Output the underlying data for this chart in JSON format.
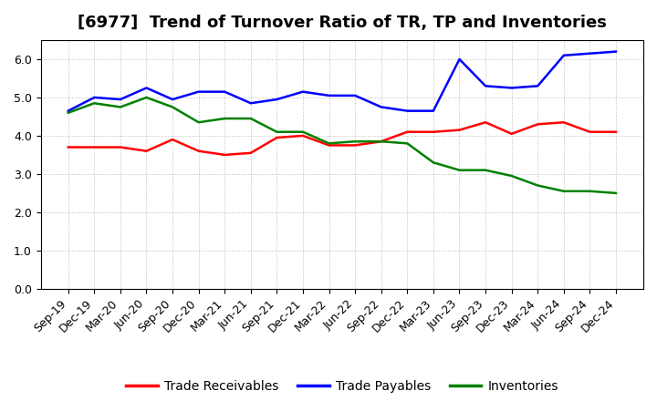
{
  "title": "[6977]  Trend of Turnover Ratio of TR, TP and Inventories",
  "x_labels": [
    "Sep-19",
    "Dec-19",
    "Mar-20",
    "Jun-20",
    "Sep-20",
    "Dec-20",
    "Mar-21",
    "Jun-21",
    "Sep-21",
    "Dec-21",
    "Mar-22",
    "Jun-22",
    "Sep-22",
    "Dec-22",
    "Mar-23",
    "Jun-23",
    "Sep-23",
    "Dec-23",
    "Mar-24",
    "Jun-24",
    "Sep-24",
    "Dec-24"
  ],
  "trade_receivables": [
    3.7,
    3.7,
    3.7,
    3.6,
    3.9,
    3.6,
    3.5,
    3.55,
    3.95,
    4.0,
    3.75,
    3.75,
    3.85,
    4.1,
    4.1,
    4.15,
    4.35,
    4.05,
    4.3,
    4.35,
    4.1,
    4.1
  ],
  "trade_payables": [
    4.65,
    5.0,
    4.95,
    5.25,
    4.95,
    5.15,
    5.15,
    4.85,
    4.95,
    5.15,
    5.05,
    5.05,
    4.75,
    4.65,
    4.65,
    6.0,
    5.3,
    5.25,
    5.3,
    6.1,
    6.15,
    6.2
  ],
  "inventories": [
    4.6,
    4.85,
    4.75,
    5.0,
    4.75,
    4.35,
    4.45,
    4.45,
    4.1,
    4.1,
    3.8,
    3.85,
    3.85,
    3.8,
    3.3,
    3.1,
    3.1,
    2.95,
    2.7,
    2.55,
    2.55,
    2.5
  ],
  "ylim": [
    0.0,
    6.5
  ],
  "yticks": [
    0.0,
    1.0,
    2.0,
    3.0,
    4.0,
    5.0,
    6.0
  ],
  "line_color_tr": "#ff0000",
  "line_color_tp": "#0000ff",
  "line_color_inv": "#008000",
  "legend_labels": [
    "Trade Receivables",
    "Trade Payables",
    "Inventories"
  ],
  "background_color": "#ffffff",
  "plot_bg_color": "#ffffff",
  "grid_color": "#aaaaaa",
  "title_fontsize": 13,
  "label_fontsize": 9,
  "legend_fontsize": 10
}
